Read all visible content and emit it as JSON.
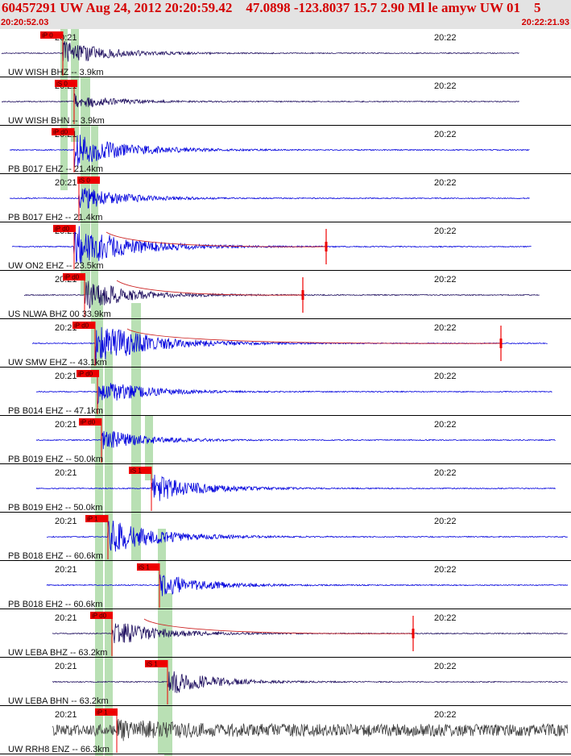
{
  "header": {
    "title": "60457291 UW Aug 24, 2012 20:20:59.42    47.0898 -123.8037 15.7 2.90 Ml le amyw UW 01    5",
    "start_time": "20:20:52.03",
    "end_time": "20:22:21.93"
  },
  "colors": {
    "header_text": "#d40000",
    "header_bg": "#e3e3e3",
    "phase_band": "#b9e0b4",
    "pick_flag": "#ee0000",
    "trace_blue": "#0000dd",
    "trace_navy": "#201060",
    "trace_gray": "#404040",
    "coda": "#cc2222",
    "divider": "#000000"
  },
  "minute_labels": [
    "20:21",
    "20:22"
  ],
  "traces": [
    {
      "label": "UW WISH BHZ -- 3.9km",
      "pick": "iP 0",
      "color": "navy",
      "amp": 0.6,
      "stub": false
    },
    {
      "label": "UW WISH BHN -- 3.9km",
      "pick": "iS 0",
      "color": "navy",
      "amp": 0.35,
      "stub": false
    },
    {
      "label": "PB B017 EHZ -- 21.4km",
      "pick": "iP d0",
      "color": "blue",
      "amp": 0.8,
      "stub": false
    },
    {
      "label": "PB B017 EH2 -- 21.4km",
      "pick": "iS 0",
      "color": "blue",
      "amp": 0.55,
      "stub": false
    },
    {
      "label": "UW ON2 EHZ -- 23.5km",
      "pick": "iP d0",
      "color": "blue",
      "amp": 1.0,
      "stub": true
    },
    {
      "label": "US NLWA BHZ 00 33.9km",
      "pick": "iP d0",
      "color": "navy",
      "amp": 0.7,
      "stub": true
    },
    {
      "label": "UW SMW EHZ -- 43.1km",
      "pick": "iP d0",
      "color": "blue",
      "amp": 1.0,
      "stub": true
    },
    {
      "label": "PB B014 EHZ -- 47.1km",
      "pick": "iP d0",
      "color": "blue",
      "amp": 0.6,
      "stub": false
    },
    {
      "label": "PB B019 EHZ -- 50.0km",
      "pick": "iP d0",
      "color": "blue",
      "amp": 0.5,
      "stub": false
    },
    {
      "label": "PB B019 EH2 -- 50.0km",
      "pick": "iS 1",
      "color": "blue",
      "amp": 0.65,
      "stub": false
    },
    {
      "label": "PB B018 EHZ -- 60.6km",
      "pick": "iP 1",
      "color": "blue",
      "amp": 0.8,
      "stub": false
    },
    {
      "label": "PB B018 EH2 -- 60.6km",
      "pick": "iS 1",
      "color": "blue",
      "amp": 0.55,
      "stub": false
    },
    {
      "label": "UW LEBA BHZ -- 63.2km",
      "pick": "iP d0",
      "color": "navy",
      "amp": 0.6,
      "stub": true
    },
    {
      "label": "UW LEBA BHN -- 63.2km",
      "pick": "iS 1",
      "color": "navy",
      "amp": 0.6,
      "stub": false
    },
    {
      "label": "UW RRH8 ENZ -- 66.3km",
      "pick": "iP 1",
      "color": "gray",
      "amp": 0.55,
      "stub": false
    }
  ]
}
